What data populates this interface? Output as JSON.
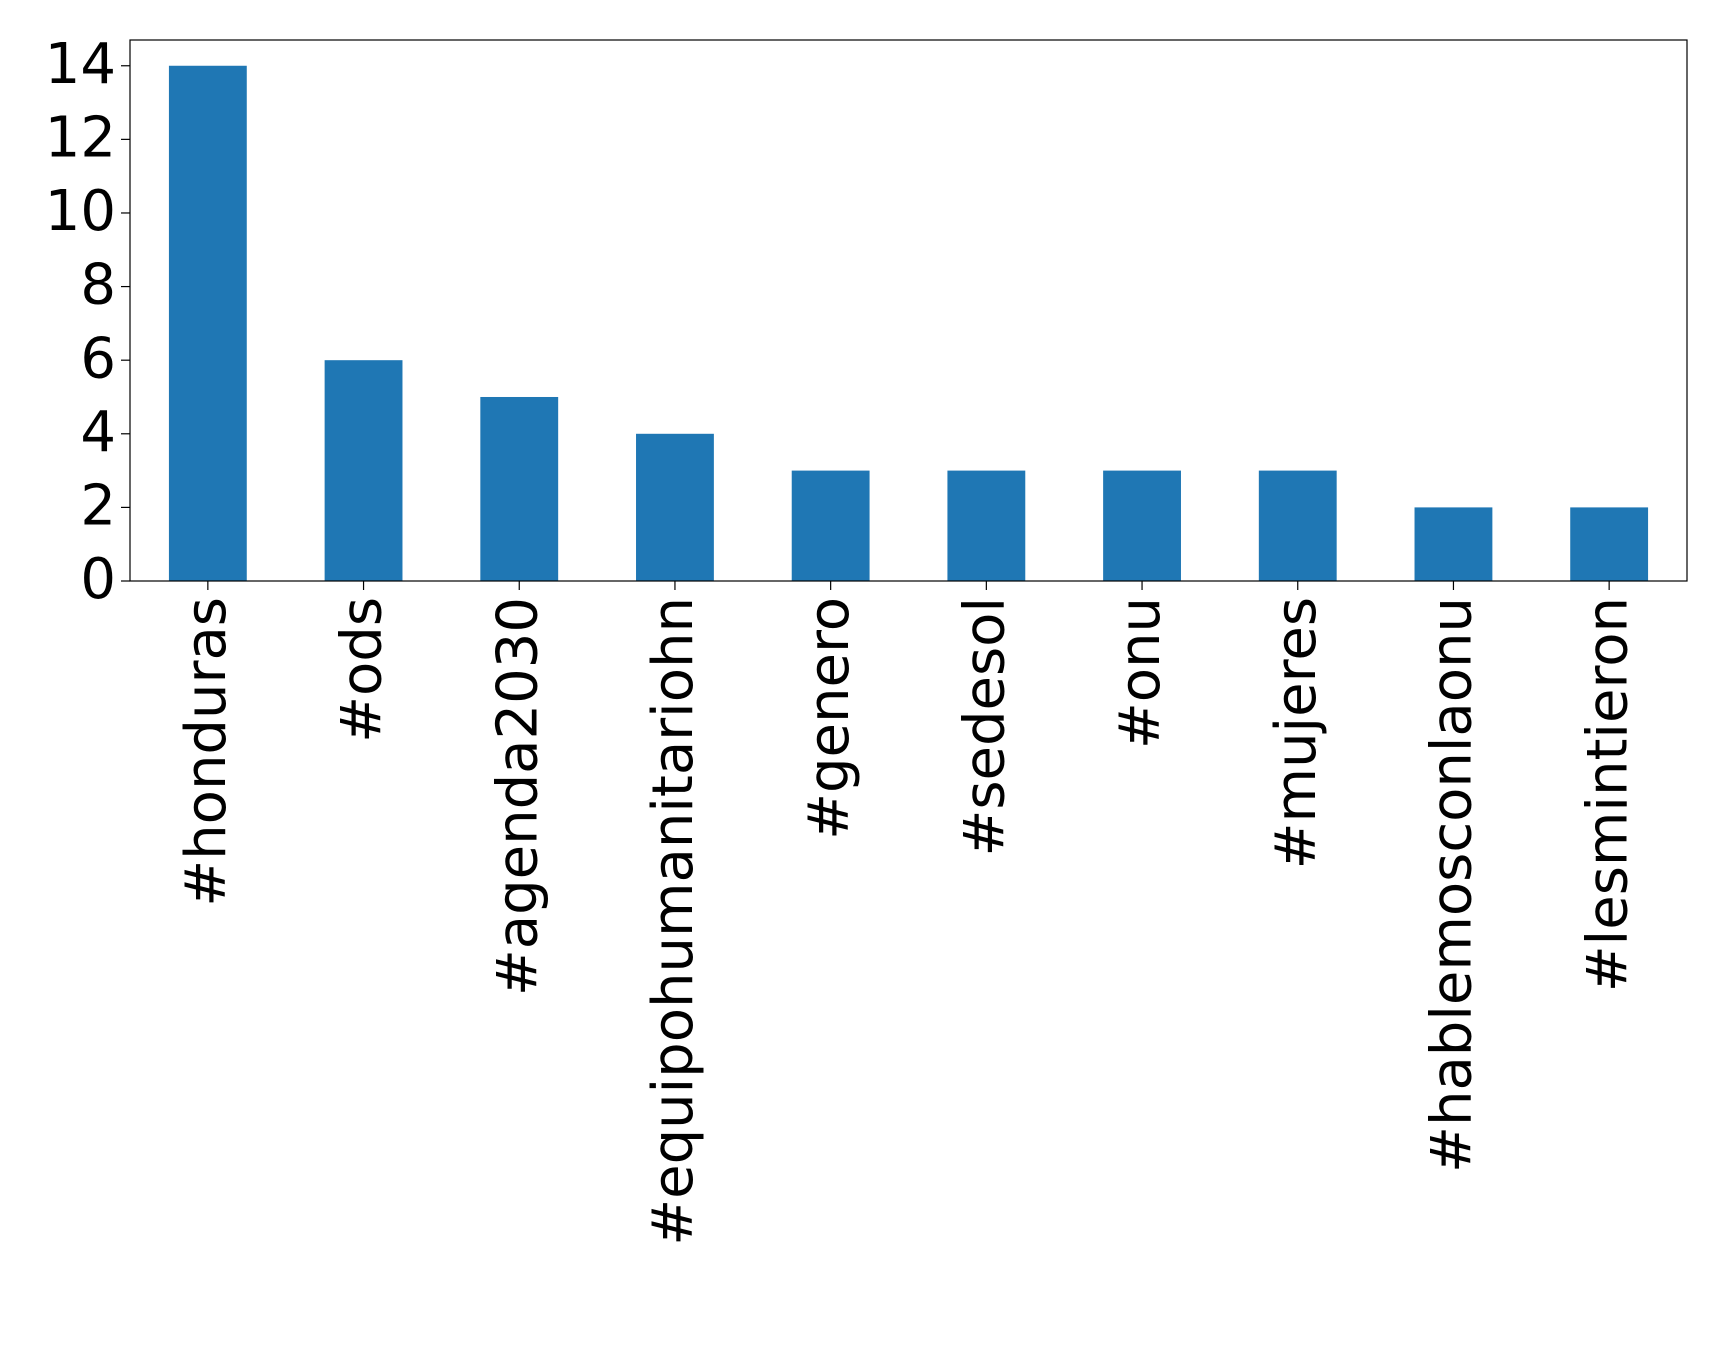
{
  "chart_data": {
    "type": "bar",
    "categories": [
      "#honduras",
      "#ods",
      "#agenda2030",
      "#equipohumanitariohn",
      "#genero",
      "#sedesol",
      "#onu",
      "#mujeres",
      "#hablemosconlaonu",
      "#lesmintieron"
    ],
    "values": [
      14,
      6,
      5,
      4,
      3,
      3,
      3,
      3,
      2,
      2
    ],
    "color": "#1f77b4",
    "ylim": [
      0,
      14.7
    ],
    "yticks": [
      0,
      2,
      4,
      6,
      8,
      10,
      12,
      14
    ],
    "grid": false
  }
}
